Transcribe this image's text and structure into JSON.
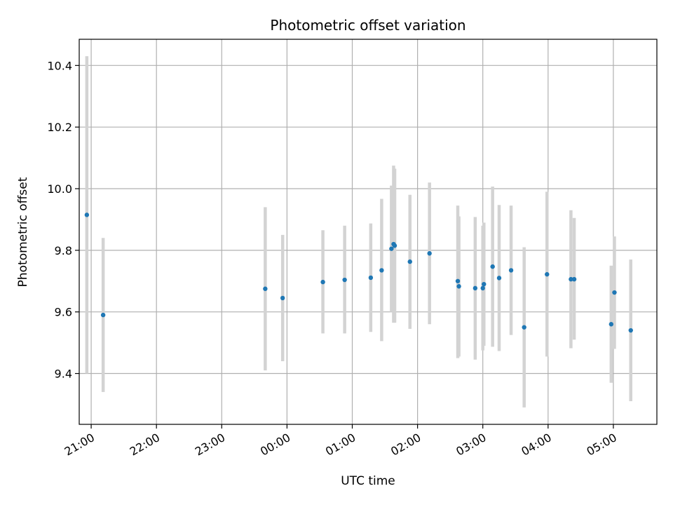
{
  "chart_data": {
    "type": "scatter",
    "title": "Photometric offset variation",
    "xlabel": "UTC time",
    "ylabel": "Photometric offset",
    "xlim": [
      "20:49",
      "05:40"
    ],
    "ylim": [
      9.235,
      10.485
    ],
    "x_ticks": [
      "21:00",
      "22:00",
      "23:00",
      "00:00",
      "01:00",
      "02:00",
      "03:00",
      "04:00",
      "05:00"
    ],
    "y_ticks": [
      9.4,
      9.6,
      9.8,
      10.0,
      10.2,
      10.4
    ],
    "y_tick_labels": [
      "9.4",
      "9.6",
      "9.8",
      "10.0",
      "10.2",
      "10.4"
    ],
    "grid": true,
    "colors": {
      "marker": "#1f77b4",
      "errorbar": "#d3d3d3",
      "grid": "#b0b0b0"
    },
    "points": [
      {
        "t": "20:56",
        "y": 9.915,
        "ymin": 9.4,
        "ymax": 10.43
      },
      {
        "t": "21:11",
        "y": 9.59,
        "ymin": 9.34,
        "ymax": 9.84
      },
      {
        "t": "23:40",
        "y": 9.675,
        "ymin": 9.41,
        "ymax": 9.94
      },
      {
        "t": "23:56",
        "y": 9.645,
        "ymin": 9.44,
        "ymax": 9.85
      },
      {
        "t": "00:33",
        "y": 9.697,
        "ymin": 9.53,
        "ymax": 9.865
      },
      {
        "t": "00:53",
        "y": 9.704,
        "ymin": 9.53,
        "ymax": 9.88
      },
      {
        "t": "01:17",
        "y": 9.711,
        "ymin": 9.535,
        "ymax": 9.887
      },
      {
        "t": "01:27",
        "y": 9.735,
        "ymin": 9.505,
        "ymax": 9.967
      },
      {
        "t": "01:36",
        "y": 9.805,
        "ymin": 9.6,
        "ymax": 10.01
      },
      {
        "t": "01:38",
        "y": 9.82,
        "ymin": 9.565,
        "ymax": 10.075
      },
      {
        "t": "01:39",
        "y": 9.815,
        "ymin": 9.565,
        "ymax": 10.065
      },
      {
        "t": "01:53",
        "y": 9.763,
        "ymin": 9.545,
        "ymax": 9.98
      },
      {
        "t": "02:11",
        "y": 9.79,
        "ymin": 9.56,
        "ymax": 10.02
      },
      {
        "t": "02:37",
        "y": 9.7,
        "ymin": 9.45,
        "ymax": 9.945
      },
      {
        "t": "02:38",
        "y": 9.683,
        "ymin": 9.455,
        "ymax": 9.91
      },
      {
        "t": "02:53",
        "y": 9.677,
        "ymin": 9.445,
        "ymax": 9.908
      },
      {
        "t": "03:00",
        "y": 9.677,
        "ymin": 9.475,
        "ymax": 9.88
      },
      {
        "t": "03:01",
        "y": 9.69,
        "ymin": 9.49,
        "ymax": 9.89
      },
      {
        "t": "03:09",
        "y": 9.747,
        "ymin": 9.487,
        "ymax": 10.007
      },
      {
        "t": "03:15",
        "y": 9.71,
        "ymin": 9.473,
        "ymax": 9.947
      },
      {
        "t": "03:26",
        "y": 9.735,
        "ymin": 9.525,
        "ymax": 9.945
      },
      {
        "t": "03:38",
        "y": 9.55,
        "ymin": 9.29,
        "ymax": 9.81
      },
      {
        "t": "03:59",
        "y": 9.722,
        "ymin": 9.455,
        "ymax": 9.99
      },
      {
        "t": "04:21",
        "y": 9.706,
        "ymin": 9.482,
        "ymax": 9.93
      },
      {
        "t": "04:24",
        "y": 9.706,
        "ymin": 9.51,
        "ymax": 9.905
      },
      {
        "t": "04:58",
        "y": 9.56,
        "ymin": 9.37,
        "ymax": 9.75
      },
      {
        "t": "05:01",
        "y": 9.663,
        "ymin": 9.48,
        "ymax": 9.845
      },
      {
        "t": "05:16",
        "y": 9.54,
        "ymin": 9.31,
        "ymax": 9.77
      }
    ]
  }
}
